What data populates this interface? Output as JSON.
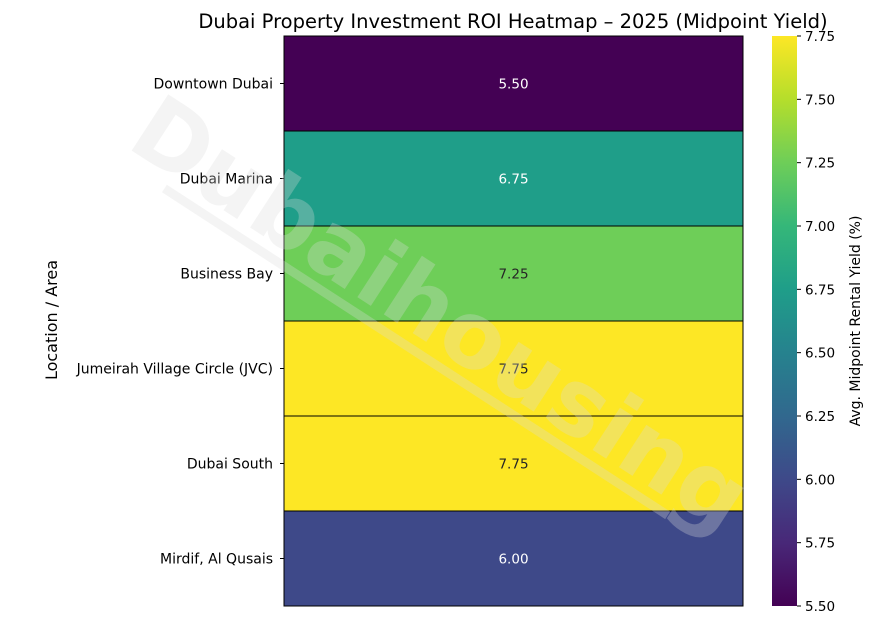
{
  "watermark": "Dubaihousing",
  "chart_data": {
    "type": "heatmap",
    "title": "Dubai Property Investment ROI Heatmap – 2025 (Midpoint Yield)",
    "ylabel": "Location / Area",
    "xlabel": "",
    "rows": [
      "Downtown Dubai",
      "Dubai Marina",
      "Business Bay",
      "Jumeirah Village Circle (JVC)",
      "Dubai South",
      "Mirdif, Al Qusais"
    ],
    "values": [
      5.5,
      6.75,
      7.25,
      7.75,
      7.75,
      6.0
    ],
    "value_labels": [
      "5.50",
      "6.75",
      "7.25",
      "7.75",
      "7.75",
      "6.00"
    ],
    "colormap": "viridis",
    "colorbar": {
      "label": "Avg. Midpoint Rental Yield (%)",
      "range": [
        5.5,
        7.75
      ],
      "ticks": [
        "5.50",
        "5.75",
        "6.00",
        "6.25",
        "6.50",
        "6.75",
        "7.00",
        "7.25",
        "7.50",
        "7.75"
      ]
    }
  }
}
